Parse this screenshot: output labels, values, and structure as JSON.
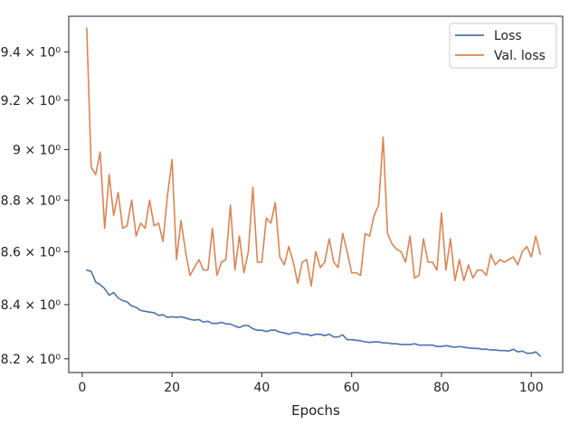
{
  "chart_data": {
    "type": "line",
    "title": "",
    "xlabel": "Epochs",
    "ylabel": "",
    "xlim": [
      -3,
      107
    ],
    "ylim": [
      8.15,
      9.55
    ],
    "y_scale": "log",
    "grid": false,
    "legend_position": "top-right",
    "x_ticks": [
      0,
      20,
      40,
      60,
      80,
      100
    ],
    "x_tick_labels": [
      "0",
      "20",
      "40",
      "60",
      "80",
      "100"
    ],
    "y_ticks": [
      8.2,
      8.4,
      8.6,
      8.8,
      9.0,
      9.2,
      9.4
    ],
    "y_tick_labels": [
      "8.2 × 10⁰",
      "8.4 × 10⁰",
      "8.6 × 10⁰",
      "8.8 × 10⁰",
      "9 × 10⁰",
      "9.2 × 10⁰",
      "9.4 × 10⁰"
    ],
    "x": [
      1,
      2,
      3,
      4,
      5,
      6,
      7,
      8,
      9,
      10,
      11,
      12,
      13,
      14,
      15,
      16,
      17,
      18,
      19,
      20,
      21,
      22,
      23,
      24,
      25,
      26,
      27,
      28,
      29,
      30,
      31,
      32,
      33,
      34,
      35,
      36,
      37,
      38,
      39,
      40,
      41,
      42,
      43,
      44,
      45,
      46,
      47,
      48,
      49,
      50,
      51,
      52,
      53,
      54,
      55,
      56,
      57,
      58,
      59,
      60,
      61,
      62,
      63,
      64,
      65,
      66,
      67,
      68,
      69,
      70,
      71,
      72,
      73,
      74,
      75,
      76,
      77,
      78,
      79,
      80,
      81,
      82,
      83,
      84,
      85,
      86,
      87,
      88,
      89,
      90,
      91,
      92,
      93,
      94,
      95,
      96,
      97,
      98,
      99,
      100,
      101,
      102
    ],
    "series": [
      {
        "name": "Loss",
        "color": "#4c72b0",
        "values": [
          8.53,
          8.525,
          8.485,
          8.475,
          8.46,
          8.435,
          8.445,
          8.425,
          8.415,
          8.41,
          8.395,
          8.39,
          8.378,
          8.375,
          8.372,
          8.37,
          8.36,
          8.362,
          8.352,
          8.355,
          8.352,
          8.355,
          8.35,
          8.345,
          8.342,
          8.344,
          8.335,
          8.338,
          8.33,
          8.33,
          8.334,
          8.328,
          8.328,
          8.32,
          8.315,
          8.322,
          8.322,
          8.31,
          8.305,
          8.305,
          8.3,
          8.305,
          8.305,
          8.298,
          8.295,
          8.29,
          8.296,
          8.296,
          8.29,
          8.29,
          8.285,
          8.29,
          8.29,
          8.285,
          8.29,
          8.28,
          8.28,
          8.288,
          8.27,
          8.27,
          8.268,
          8.266,
          8.262,
          8.26,
          8.262,
          8.262,
          8.258,
          8.258,
          8.255,
          8.255,
          8.252,
          8.252,
          8.252,
          8.255,
          8.25,
          8.25,
          8.25,
          8.25,
          8.245,
          8.245,
          8.248,
          8.245,
          8.242,
          8.245,
          8.242,
          8.24,
          8.238,
          8.238,
          8.235,
          8.235,
          8.232,
          8.232,
          8.23,
          8.23,
          8.228,
          8.235,
          8.225,
          8.228,
          8.22,
          8.22,
          8.225,
          8.21
        ]
      },
      {
        "name": "Val. loss",
        "color": "#dd8452",
        "values": [
          9.5,
          8.93,
          8.9,
          8.99,
          8.69,
          8.9,
          8.74,
          8.83,
          8.69,
          8.7,
          8.8,
          8.66,
          8.71,
          8.69,
          8.8,
          8.7,
          8.71,
          8.64,
          8.82,
          8.96,
          8.57,
          8.72,
          8.6,
          8.51,
          8.54,
          8.57,
          8.53,
          8.53,
          8.69,
          8.51,
          8.56,
          8.57,
          8.78,
          8.53,
          8.66,
          8.52,
          8.6,
          8.85,
          8.56,
          8.56,
          8.73,
          8.71,
          8.79,
          8.58,
          8.55,
          8.62,
          8.56,
          8.48,
          8.56,
          8.57,
          8.47,
          8.6,
          8.54,
          8.56,
          8.65,
          8.56,
          8.54,
          8.67,
          8.6,
          8.52,
          8.52,
          8.51,
          8.67,
          8.66,
          8.74,
          8.78,
          9.05,
          8.67,
          8.63,
          8.61,
          8.6,
          8.56,
          8.66,
          8.5,
          8.51,
          8.65,
          8.56,
          8.56,
          8.53,
          8.75,
          8.53,
          8.65,
          8.49,
          8.57,
          8.49,
          8.55,
          8.5,
          8.53,
          8.53,
          8.51,
          8.59,
          8.55,
          8.57,
          8.56,
          8.57,
          8.58,
          8.55,
          8.6,
          8.62,
          8.58,
          8.66,
          8.59
        ]
      }
    ]
  }
}
